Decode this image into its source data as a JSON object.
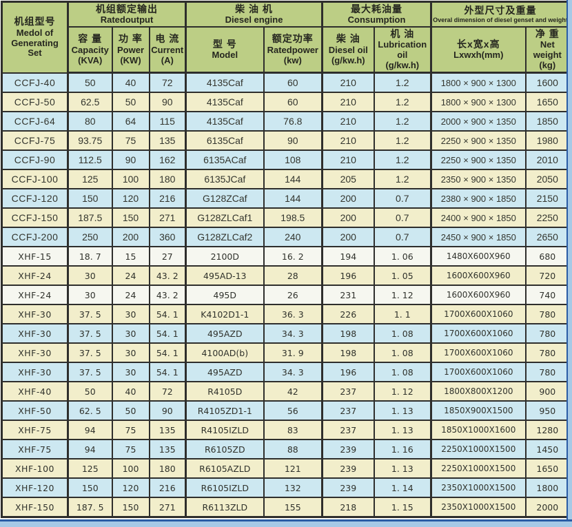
{
  "colors": {
    "header_bg": "#bcce85",
    "row_blue": "#cde8f1",
    "row_cream": "#f2eecb",
    "row_white": "#f6f7f0",
    "grid_line": "#2e2e2c",
    "frame_dark_blue": "#2a5ca5",
    "frame_light_blue": "#a6c9e6"
  },
  "table": {
    "header": {
      "groups": {
        "model": {
          "zh": "机组型号",
          "en": "Medol of\nGenerating\nSet"
        },
        "rated_output": {
          "zh": "机组额定输出",
          "en": "Ratedoutput"
        },
        "diesel_engine": {
          "zh": "柴 油 机",
          "en": "Diesel engine"
        },
        "consumption": {
          "zh": "最大耗油量",
          "en": "Consumption"
        },
        "dimension": {
          "zh": "外型尺寸及重量",
          "en": "Overal dimension of diesel genset and weight"
        }
      },
      "columns": {
        "capacity": {
          "zh": "容 量",
          "en": "Capacity",
          "unit": "(KVA)"
        },
        "power": {
          "zh": "功 率",
          "en": "Power",
          "unit": "(KW)"
        },
        "current": {
          "zh": "电 流",
          "en": "Current",
          "unit": "(A)"
        },
        "engine_model": {
          "zh": "型 号",
          "en": "Model"
        },
        "rated_power": {
          "zh": "额定功率",
          "en": "Ratedpower",
          "unit": "(kw)"
        },
        "diesel_oil": {
          "zh": "柴 油",
          "en": "Diesel oil",
          "unit": "(g/kw.h)"
        },
        "lub_oil": {
          "zh": "机 油",
          "en": "Lubrication oil",
          "unit": "(g/kw.h)"
        },
        "dimensions": {
          "zh": "长x宽x高",
          "en": "Lxwxh(mm)"
        },
        "net_weight": {
          "zh": "净 重",
          "en": "Net weight",
          "unit": "(kg)"
        }
      }
    },
    "rows": [
      {
        "model": "CCFJ-40",
        "capacity": "50",
        "power": "40",
        "current": "72",
        "engine_model": "4135Caf",
        "rated_power": "60",
        "diesel_oil": "210",
        "lub_oil": "1.2",
        "dimensions": "1800 × 900 × 1300",
        "net_weight": "1600",
        "shade": "blue",
        "series": "ccfj"
      },
      {
        "model": "CCFJ-50",
        "capacity": "62.5",
        "power": "50",
        "current": "90",
        "engine_model": "4135Caf",
        "rated_power": "60",
        "diesel_oil": "210",
        "lub_oil": "1.2",
        "dimensions": "1800 × 900 × 1300",
        "net_weight": "1650",
        "shade": "cream",
        "series": "ccfj"
      },
      {
        "model": "CCFJ-64",
        "capacity": "80",
        "power": "64",
        "current": "115",
        "engine_model": "4135Caf",
        "rated_power": "76.8",
        "diesel_oil": "210",
        "lub_oil": "1.2",
        "dimensions": "2000 × 900 × 1350",
        "net_weight": "1850",
        "shade": "blue",
        "series": "ccfj"
      },
      {
        "model": "CCFJ-75",
        "capacity": "93.75",
        "power": "75",
        "current": "135",
        "engine_model": "6135Caf",
        "rated_power": "90",
        "diesel_oil": "210",
        "lub_oil": "1.2",
        "dimensions": "2250 × 900 × 1350",
        "net_weight": "1980",
        "shade": "cream",
        "series": "ccfj"
      },
      {
        "model": "CCFJ-90",
        "capacity": "112.5",
        "power": "90",
        "current": "162",
        "engine_model": "6135ACaf",
        "rated_power": "108",
        "diesel_oil": "210",
        "lub_oil": "1.2",
        "dimensions": "2250 × 900 × 1350",
        "net_weight": "2010",
        "shade": "blue",
        "series": "ccfj"
      },
      {
        "model": "CCFJ-100",
        "capacity": "125",
        "power": "100",
        "current": "180",
        "engine_model": "6135JCaf",
        "rated_power": "144",
        "diesel_oil": "205",
        "lub_oil": "1.2",
        "dimensions": "2350 × 900 × 1350",
        "net_weight": "2050",
        "shade": "cream",
        "series": "ccfj"
      },
      {
        "model": "CCFJ-120",
        "capacity": "150",
        "power": "120",
        "current": "216",
        "engine_model": "G128ZCaf",
        "rated_power": "144",
        "diesel_oil": "200",
        "lub_oil": "0.7",
        "dimensions": "2380 × 900 × 1850",
        "net_weight": "2150",
        "shade": "blue",
        "series": "ccfj"
      },
      {
        "model": "CCFJ-150",
        "capacity": "187.5",
        "power": "150",
        "current": "271",
        "engine_model": "G128ZLCaf1",
        "rated_power": "198.5",
        "diesel_oil": "200",
        "lub_oil": "0.7",
        "dimensions": "2400 × 900 × 1850",
        "net_weight": "2250",
        "shade": "cream",
        "series": "ccfj"
      },
      {
        "model": "CCFJ-200",
        "capacity": "250",
        "power": "200",
        "current": "360",
        "engine_model": "G128ZLCaf2",
        "rated_power": "240",
        "diesel_oil": "200",
        "lub_oil": "0.7",
        "dimensions": "2450 × 900 × 1850",
        "net_weight": "2650",
        "shade": "blue",
        "series": "ccfj"
      },
      {
        "model": "XHF-15",
        "capacity": "18. 7",
        "power": "15",
        "current": "27",
        "engine_model": "2100D",
        "rated_power": "16. 2",
        "diesel_oil": "194",
        "lub_oil": "1. 06",
        "dimensions": "1480X600X960",
        "net_weight": "680",
        "shade": "white",
        "series": "xhf"
      },
      {
        "model": "XHF-24",
        "capacity": "30",
        "power": "24",
        "current": "43. 2",
        "engine_model": "495AD-13",
        "rated_power": "28",
        "diesel_oil": "196",
        "lub_oil": "1. 05",
        "dimensions": "1600X600X960",
        "net_weight": "720",
        "shade": "cream",
        "series": "xhf"
      },
      {
        "model": "XHF-24",
        "capacity": "30",
        "power": "24",
        "current": "43. 2",
        "engine_model": "495D",
        "rated_power": "26",
        "diesel_oil": "231",
        "lub_oil": "1. 12",
        "dimensions": "1600X600X960",
        "net_weight": "740",
        "shade": "white",
        "series": "xhf"
      },
      {
        "model": "XHF-30",
        "capacity": "37. 5",
        "power": "30",
        "current": "54. 1",
        "engine_model": "K4102D1-1",
        "rated_power": "36. 3",
        "diesel_oil": "226",
        "lub_oil": "1. 1",
        "dimensions": "1700X600X1060",
        "net_weight": "780",
        "shade": "cream",
        "series": "xhf"
      },
      {
        "model": "XHF-30",
        "capacity": "37. 5",
        "power": "30",
        "current": "54. 1",
        "engine_model": "495AZD",
        "rated_power": "34. 3",
        "diesel_oil": "198",
        "lub_oil": "1. 08",
        "dimensions": "1700X600X1060",
        "net_weight": "780",
        "shade": "blue",
        "series": "xhf"
      },
      {
        "model": "XHF-30",
        "capacity": "37. 5",
        "power": "30",
        "current": "54. 1",
        "engine_model": "4100AD(b)",
        "rated_power": "31. 9",
        "diesel_oil": "198",
        "lub_oil": "1. 08",
        "dimensions": "1700X600X1060",
        "net_weight": "780",
        "shade": "cream",
        "series": "xhf"
      },
      {
        "model": "XHF-30",
        "capacity": "37. 5",
        "power": "30",
        "current": "54. 1",
        "engine_model": "495AZD",
        "rated_power": "34. 3",
        "diesel_oil": "196",
        "lub_oil": "1. 08",
        "dimensions": "1700X600X1060",
        "net_weight": "780",
        "shade": "blue",
        "series": "xhf"
      },
      {
        "model": "XHF-40",
        "capacity": "50",
        "power": "40",
        "current": "72",
        "engine_model": "R4105D",
        "rated_power": "42",
        "diesel_oil": "237",
        "lub_oil": "1. 12",
        "dimensions": "1800X800X1200",
        "net_weight": "900",
        "shade": "cream",
        "series": "xhf"
      },
      {
        "model": "XHF-50",
        "capacity": "62. 5",
        "power": "50",
        "current": "90",
        "engine_model": "R4105ZD1-1",
        "rated_power": "56",
        "diesel_oil": "237",
        "lub_oil": "1. 13",
        "dimensions": "1850X900X1500",
        "net_weight": "950",
        "shade": "blue",
        "series": "xhf"
      },
      {
        "model": "XHF-75",
        "capacity": "94",
        "power": "75",
        "current": "135",
        "engine_model": "R4105IZLD",
        "rated_power": "83",
        "diesel_oil": "237",
        "lub_oil": "1. 13",
        "dimensions": "1850X1000X1600",
        "net_weight": "1280",
        "shade": "cream",
        "series": "xhf"
      },
      {
        "model": "XHF-75",
        "capacity": "94",
        "power": "75",
        "current": "135",
        "engine_model": "R6105ZD",
        "rated_power": "88",
        "diesel_oil": "239",
        "lub_oil": "1. 16",
        "dimensions": "2250X1000X1500",
        "net_weight": "1450",
        "shade": "blue",
        "series": "xhf"
      },
      {
        "model": "XHF-100",
        "capacity": "125",
        "power": "100",
        "current": "180",
        "engine_model": "R6105AZLD",
        "rated_power": "121",
        "diesel_oil": "239",
        "lub_oil": "1. 13",
        "dimensions": "2250X1000X1500",
        "net_weight": "1650",
        "shade": "cream",
        "series": "xhf"
      },
      {
        "model": "XHF-120",
        "capacity": "150",
        "power": "120",
        "current": "216",
        "engine_model": "R6105IZLD",
        "rated_power": "132",
        "diesel_oil": "239",
        "lub_oil": "1. 14",
        "dimensions": "2350X1000X1500",
        "net_weight": "1800",
        "shade": "blue",
        "series": "xhf"
      },
      {
        "model": "XHF-150",
        "capacity": "187. 5",
        "power": "150",
        "current": "271",
        "engine_model": "R6113ZLD",
        "rated_power": "155",
        "diesel_oil": "218",
        "lub_oil": "1. 15",
        "dimensions": "2350X1000X1500",
        "net_weight": "2000",
        "shade": "cream",
        "series": "xhf"
      }
    ]
  }
}
